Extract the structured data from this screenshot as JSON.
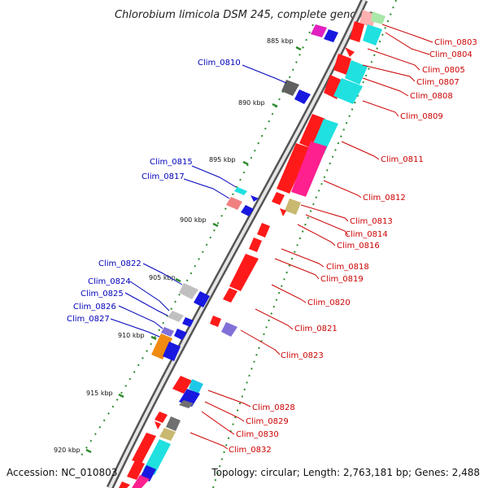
{
  "title": "Chlorobium limicola DSM 245, complete genome",
  "accession": "Accession: NC_010803",
  "summary": "Topology: circular; Length: 2,763,181 bp; Genes: 2,488",
  "colors": {
    "backbone": "#7a7a7a",
    "tick": "#2e8b2e",
    "forward_label": "#cc0000",
    "reverse_label": "#0000bb"
  },
  "ticks": [
    {
      "label": "885 kbp"
    },
    {
      "label": "890 kbp"
    },
    {
      "label": "895 kbp"
    },
    {
      "label": "900 kbp"
    },
    {
      "label": "905 kbp"
    },
    {
      "label": "910 kbp"
    },
    {
      "label": "915 kbp"
    },
    {
      "label": "920 kbp"
    }
  ],
  "forward_labels": [
    "Clim_0803",
    "Clim_0804",
    "Clim_0805",
    "Clim_0807",
    "Clim_0808",
    "Clim_0809",
    "Clim_0811",
    "Clim_0812",
    "Clim_0813",
    "Clim_0814",
    "Clim_0816",
    "Clim_0818",
    "Clim_0819",
    "Clim_0820",
    "Clim_0821",
    "Clim_0823",
    "Clim_0828",
    "Clim_0829",
    "Clim_0830",
    "Clim_0832"
  ],
  "reverse_labels": [
    "Clim_0810",
    "Clim_0815",
    "Clim_0817",
    "Clim_0822",
    "Clim_0824",
    "Clim_0825",
    "Clim_0826",
    "Clim_0827"
  ]
}
